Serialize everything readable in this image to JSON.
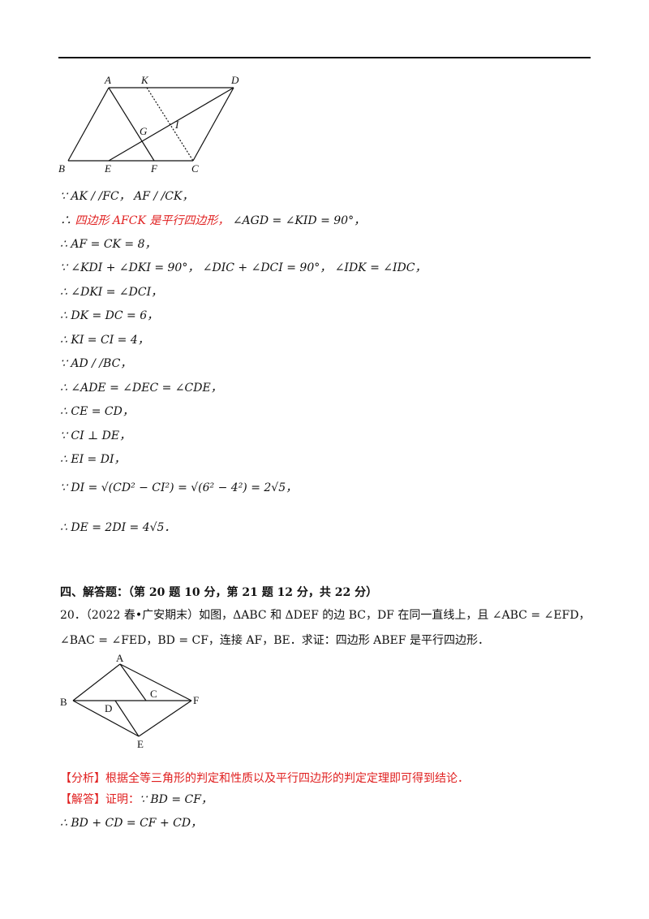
{
  "figure1": {
    "labels": {
      "A": "A",
      "K": "K",
      "D": "D",
      "G": "G",
      "I": "I",
      "B": "B",
      "E": "E",
      "F": "F",
      "C": "C"
    }
  },
  "proof1": [
    {
      "text": "∵ AK / /FC， AF / /CK，"
    },
    {
      "text_black": "∴",
      "text_red": "四边形 AFCK 是平行四边形，",
      "text_tail": " ∠AGD = ∠KID = 90°，"
    },
    {
      "text": "∴ AF = CK = 8，"
    },
    {
      "text": "∵ ∠KDI + ∠DKI = 90°， ∠DIC + ∠DCI = 90°， ∠IDK = ∠IDC，"
    },
    {
      "text": "∴ ∠DKI = ∠DCI，"
    },
    {
      "text": "∴ DK = DC = 6，"
    },
    {
      "text": "∴ KI = CI = 4，"
    },
    {
      "text": "∵ AD / /BC，"
    },
    {
      "text": "∴ ∠ADE = ∠DEC = ∠CDE，"
    },
    {
      "text": "∴ CE = CD，"
    },
    {
      "text": "∵ CI ⊥ DE，"
    },
    {
      "text": "∴ EI = DI，"
    },
    {
      "text": "∵ DI = √(CD² − CI²) = √(6² − 4²) = 2√5，"
    },
    {
      "text": "∴ DE = 2DI = 4√5．"
    }
  ],
  "section": {
    "title": "四、解答题：（第 20 题 10 分，第 21 题 12 分，共 22 分）"
  },
  "problem20": {
    "line1": "20．（2022 春•广安期末）如图，ΔABC 和 ΔDEF 的边 BC，DF 在同一直线上，且 ∠ABC = ∠EFD，",
    "line2": "∠BAC = ∠FED，BD = CF，连接 AF，BE．求证：四边形 ABEF 是平行四边形．"
  },
  "figure2": {
    "labels": {
      "A": "A",
      "B": "B",
      "C": "C",
      "D": "D",
      "E": "E",
      "F": "F"
    }
  },
  "analysis": {
    "tag": "【分析】",
    "text": "根据全等三角形的判定和性质以及平行四边形的判定定理即可得到结论．"
  },
  "answer": {
    "tag": "【解答】",
    "prefix": "证明：",
    "line1": "∵ BD = CF，",
    "line2": "∴ BD + CD = CF + CD，"
  },
  "colors": {
    "red": "#e02020",
    "text": "#111111"
  }
}
